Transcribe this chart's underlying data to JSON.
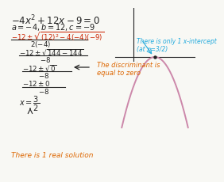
{
  "title": "$-4x^2 + 12x - 9 = 0$",
  "abc_line": "$a = -4, b = 12, c = -9$",
  "bg_color": "#f8f8f4",
  "text_color": "#222222",
  "formula_color": "#cc2200",
  "note_color_orange": "#dd6600",
  "note_color_cyan": "#22aadd",
  "parabola_color": "#cc88aa",
  "vertex_x": 1.5,
  "vertex_y": 0.0,
  "xlim": [
    0.55,
    2.65
  ],
  "ylim": [
    -2.8,
    0.9
  ],
  "discriminant_note": "The discriminant is\nequal to zero",
  "intercept_note": "There is only 1 x-intercept\n(at x=3/2)",
  "solution_note": "There is 1 real solution"
}
